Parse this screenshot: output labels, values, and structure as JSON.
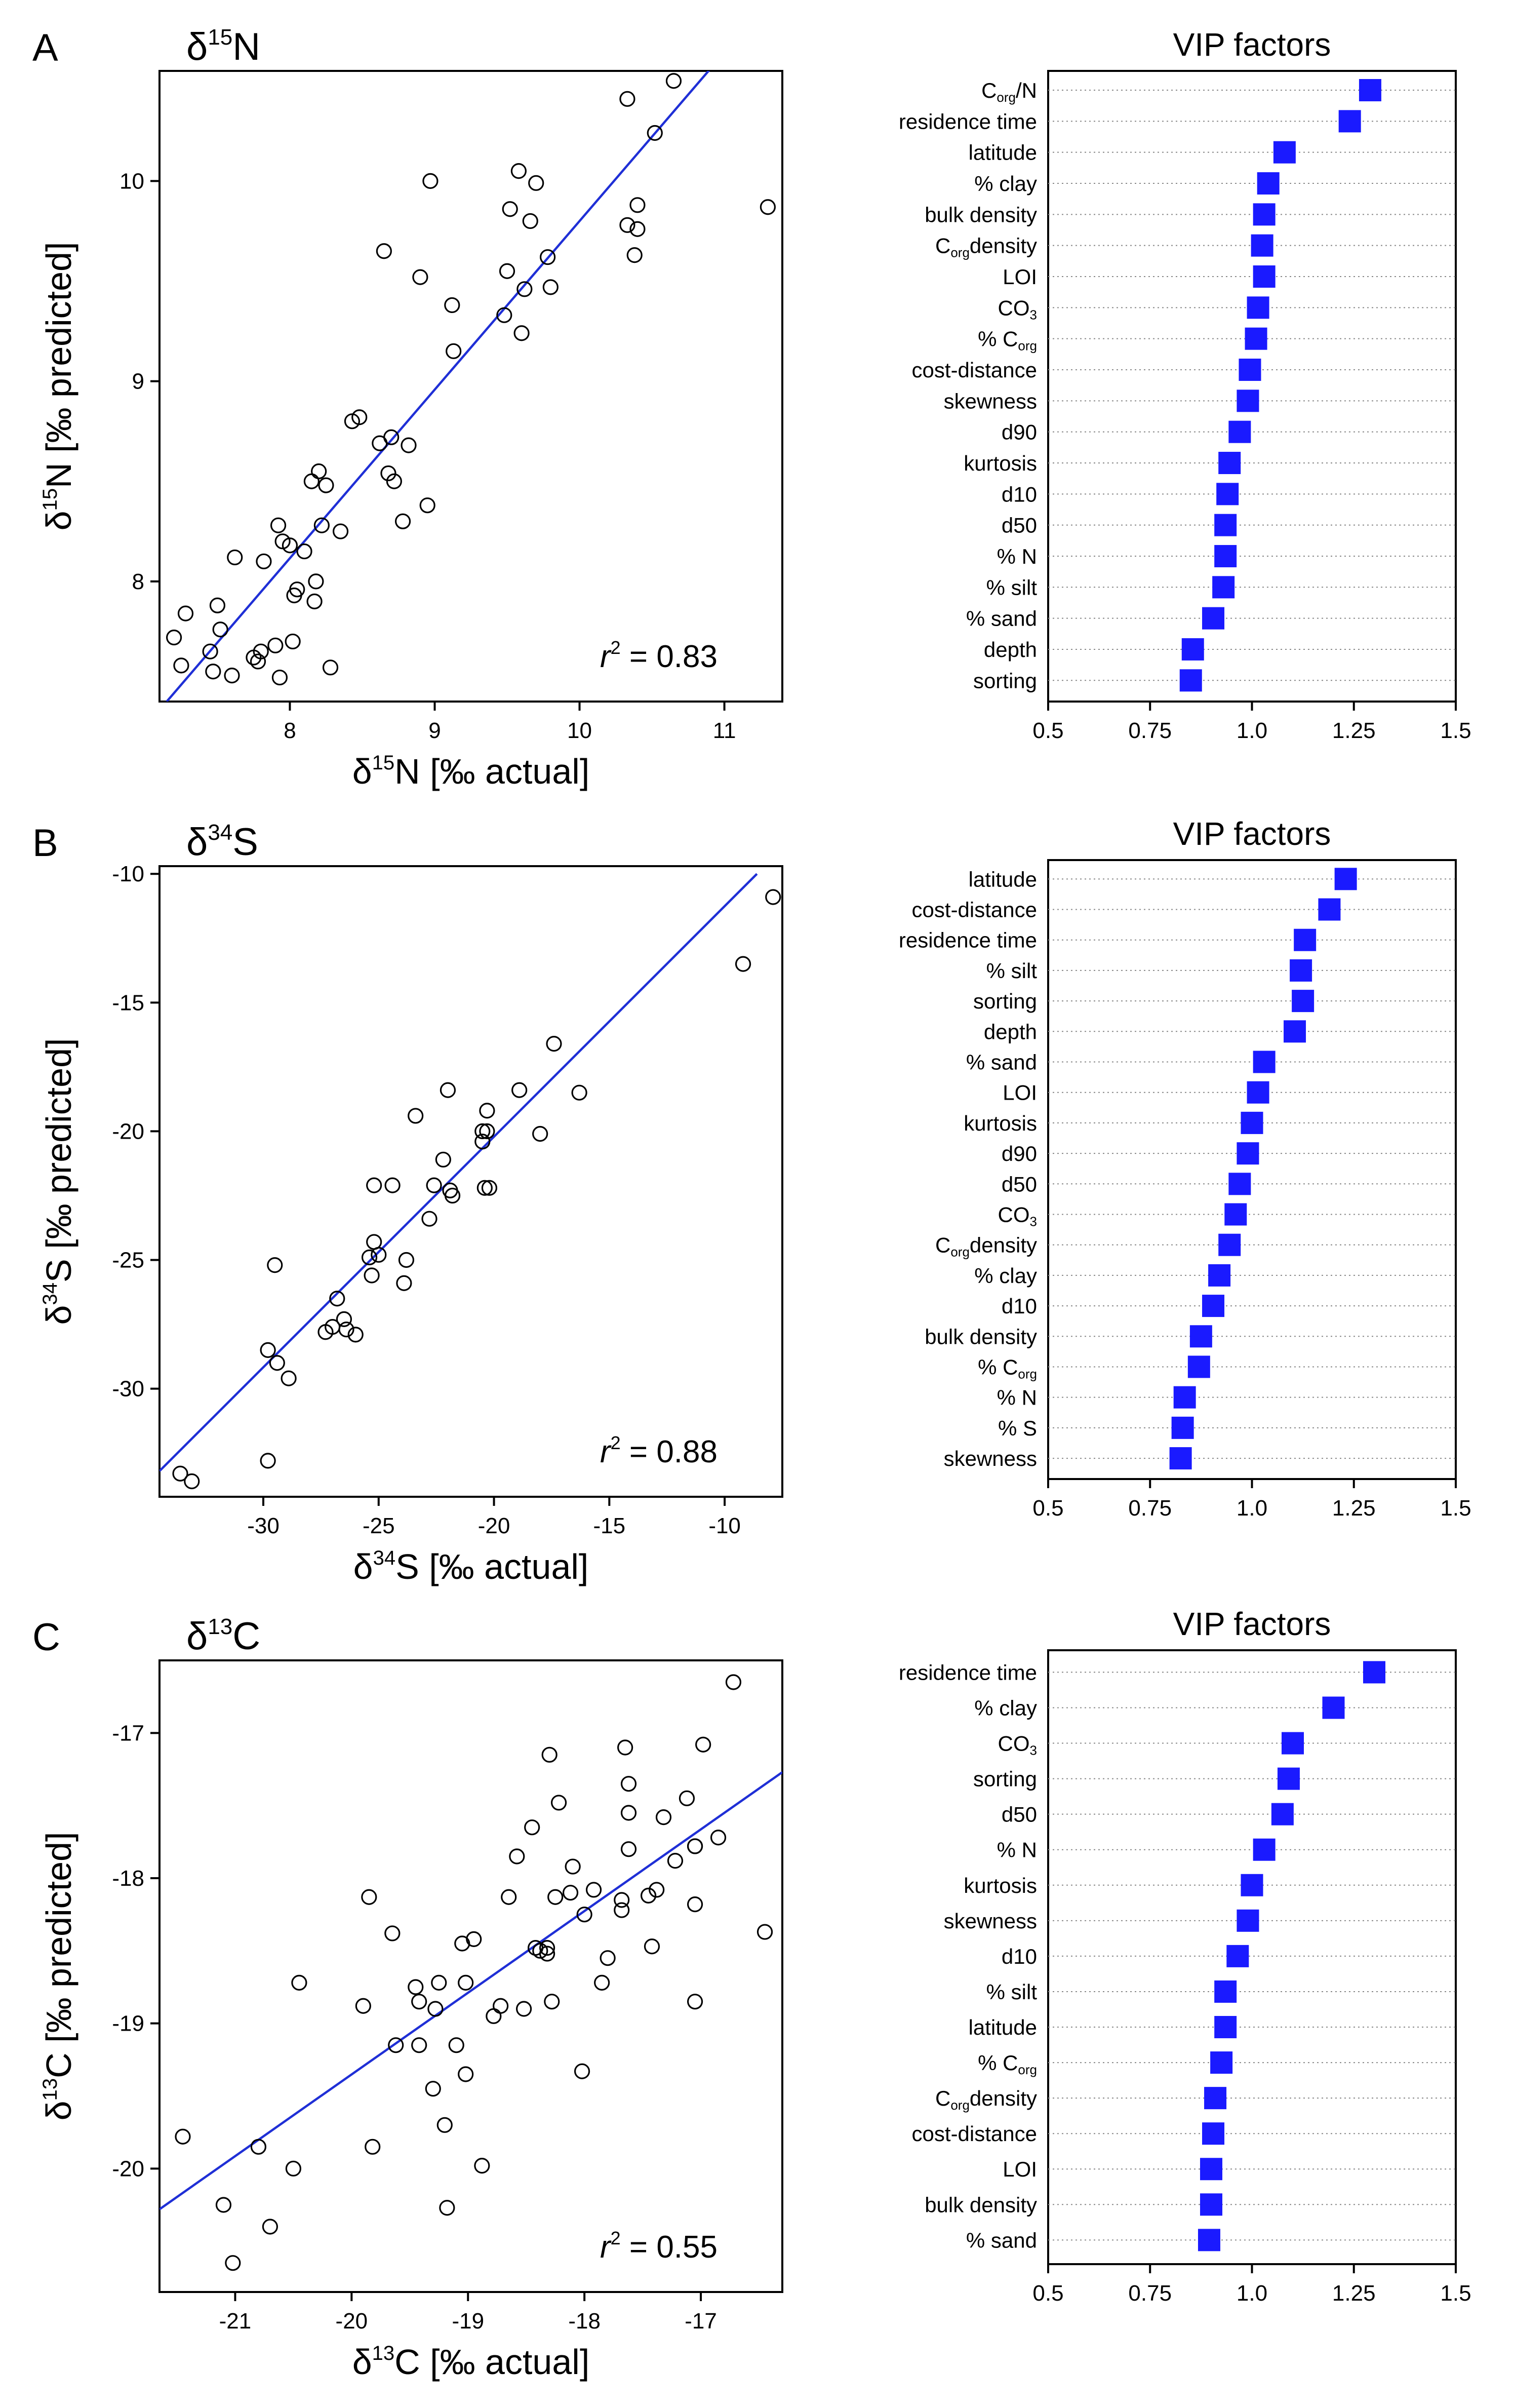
{
  "colors": {
    "regression": "#1f2fd6",
    "vip": "#1a1aff",
    "axis": "#000000",
    "guide": "#888888"
  },
  "chart_data": [
    {
      "panel": "A",
      "type": "scatter",
      "title": {
        "main": "δ",
        "sup": "15",
        "rest": "N"
      },
      "xlabel": {
        "pre": "δ",
        "sup": "15",
        "post": "N [‰ actual]"
      },
      "ylabel": {
        "pre": "δ",
        "sup": "15",
        "post": "N [‰ predicted]"
      },
      "xlim": [
        7.1,
        11.4
      ],
      "ylim": [
        7.4,
        10.55
      ],
      "xticks": [
        8,
        9,
        10,
        11
      ],
      "yticks": [
        8,
        9,
        10
      ],
      "xtick_labels": [
        "8",
        "9",
        "10",
        "11"
      ],
      "ytick_labels": [
        "8",
        "9",
        "10"
      ],
      "fit": {
        "x0": 7.15,
        "y0": 7.4,
        "x1": 10.95,
        "y1": 10.6
      },
      "r2": {
        "label": "r",
        "sup": "2",
        "value": "= 0.83"
      },
      "points": [
        [
          7.2,
          7.72
        ],
        [
          7.25,
          7.58
        ],
        [
          7.28,
          7.84
        ],
        [
          7.45,
          7.65
        ],
        [
          7.47,
          7.55
        ],
        [
          7.5,
          7.88
        ],
        [
          7.52,
          7.76
        ],
        [
          7.6,
          7.53
        ],
        [
          7.62,
          8.12
        ],
        [
          7.75,
          7.62
        ],
        [
          7.78,
          7.6
        ],
        [
          7.8,
          7.65
        ],
        [
          7.82,
          8.1
        ],
        [
          7.9,
          7.68
        ],
        [
          7.92,
          8.28
        ],
        [
          7.95,
          8.2
        ],
        [
          7.93,
          7.52
        ],
        [
          8.0,
          8.18
        ],
        [
          8.02,
          7.7
        ],
        [
          8.03,
          7.93
        ],
        [
          8.05,
          7.96
        ],
        [
          8.1,
          8.15
        ],
        [
          8.15,
          8.5
        ],
        [
          8.17,
          7.9
        ],
        [
          8.18,
          8.0
        ],
        [
          8.2,
          8.55
        ],
        [
          8.22,
          8.28
        ],
        [
          8.25,
          8.48
        ],
        [
          8.28,
          7.57
        ],
        [
          8.35,
          8.25
        ],
        [
          8.43,
          8.8
        ],
        [
          8.48,
          8.82
        ],
        [
          8.62,
          8.69
        ],
        [
          8.65,
          9.65
        ],
        [
          8.68,
          8.54
        ],
        [
          8.7,
          8.72
        ],
        [
          8.72,
          8.5
        ],
        [
          8.78,
          8.3
        ],
        [
          8.82,
          8.68
        ],
        [
          8.9,
          9.52
        ],
        [
          8.95,
          8.38
        ],
        [
          8.97,
          10.0
        ],
        [
          9.12,
          9.38
        ],
        [
          9.13,
          9.15
        ],
        [
          9.48,
          9.33
        ],
        [
          9.5,
          9.55
        ],
        [
          9.52,
          9.86
        ],
        [
          9.58,
          10.05
        ],
        [
          9.6,
          9.24
        ],
        [
          9.62,
          9.46
        ],
        [
          9.66,
          9.8
        ],
        [
          9.7,
          9.99
        ],
        [
          9.78,
          9.62
        ],
        [
          9.8,
          9.47
        ],
        [
          10.33,
          10.41
        ],
        [
          10.33,
          9.78
        ],
        [
          10.38,
          9.63
        ],
        [
          10.4,
          9.76
        ],
        [
          10.4,
          9.88
        ],
        [
          10.52,
          10.24
        ],
        [
          10.65,
          10.5
        ],
        [
          11.3,
          9.87
        ]
      ]
    },
    {
      "panel": "B",
      "type": "scatter",
      "title": {
        "main": "δ",
        "sup": "34",
        "rest": "S"
      },
      "xlabel": {
        "pre": "δ",
        "sup": "34",
        "post": "S [‰ actual]"
      },
      "ylabel": {
        "pre": "δ",
        "sup": "34",
        "post": "S [‰ predicted]"
      },
      "xlim": [
        -34.5,
        -7.5
      ],
      "ylim": [
        -34.2,
        -9.7
      ],
      "xticks": [
        -30,
        -25,
        -20,
        -15,
        -10
      ],
      "yticks": [
        -30,
        -25,
        -20,
        -15,
        -10
      ],
      "xtick_labels": [
        "-30",
        "-25",
        "-20",
        "-15",
        "-10"
      ],
      "ytick_labels": [
        "-30",
        "-25",
        "-20",
        "-15",
        "-10"
      ],
      "fit": {
        "x0": -34.5,
        "y0": -33.2,
        "x1": -8.6,
        "y1": -10.0
      },
      "r2": {
        "label": "r",
        "sup": "2",
        "value": "= 0.88"
      },
      "points": [
        [
          -33.6,
          -33.3
        ],
        [
          -33.1,
          -33.6
        ],
        [
          -29.8,
          -28.5
        ],
        [
          -29.8,
          -32.8
        ],
        [
          -29.5,
          -25.2
        ],
        [
          -29.4,
          -29.0
        ],
        [
          -28.9,
          -29.6
        ],
        [
          -27.3,
          -27.8
        ],
        [
          -27.0,
          -27.6
        ],
        [
          -26.8,
          -26.5
        ],
        [
          -26.5,
          -27.3
        ],
        [
          -26.4,
          -27.7
        ],
        [
          -26.0,
          -27.9
        ],
        [
          -25.4,
          -24.9
        ],
        [
          -25.3,
          -25.6
        ],
        [
          -25.2,
          -24.3
        ],
        [
          -25.2,
          -22.1
        ],
        [
          -25.0,
          -24.8
        ],
        [
          -24.4,
          -22.1
        ],
        [
          -23.9,
          -25.9
        ],
        [
          -23.8,
          -25.0
        ],
        [
          -23.4,
          -19.4
        ],
        [
          -22.8,
          -23.4
        ],
        [
          -22.6,
          -22.1
        ],
        [
          -22.2,
          -21.1
        ],
        [
          -22.0,
          -18.4
        ],
        [
          -21.9,
          -22.3
        ],
        [
          -21.8,
          -22.5
        ],
        [
          -20.5,
          -20.0
        ],
        [
          -20.5,
          -20.4
        ],
        [
          -20.4,
          -22.2
        ],
        [
          -20.3,
          -19.2
        ],
        [
          -20.3,
          -20.0
        ],
        [
          -20.2,
          -22.2
        ],
        [
          -18.9,
          -18.4
        ],
        [
          -18.0,
          -20.1
        ],
        [
          -17.4,
          -16.6
        ],
        [
          -16.3,
          -18.5
        ],
        [
          -9.2,
          -13.5
        ],
        [
          -7.9,
          -10.9
        ]
      ]
    },
    {
      "panel": "C",
      "type": "scatter",
      "title": {
        "main": "δ",
        "sup": "13",
        "rest": "C"
      },
      "xlabel": {
        "pre": "δ",
        "sup": "13",
        "post": "C [‰ actual]"
      },
      "ylabel": {
        "pre": "δ",
        "sup": "13",
        "post": "C [‰ predicted]"
      },
      "xlim": [
        -21.65,
        -16.3
      ],
      "ylim": [
        -20.85,
        -16.5
      ],
      "xticks": [
        -21,
        -20,
        -19,
        -18,
        -17
      ],
      "yticks": [
        -20,
        -19,
        -18,
        -17
      ],
      "xtick_labels": [
        "-21",
        "-20",
        "-19",
        "-18",
        "-17"
      ],
      "ytick_labels": [
        "-20",
        "-19",
        "-18",
        "-17"
      ],
      "fit": {
        "x0": -21.65,
        "y0": -20.28,
        "x1": -16.3,
        "y1": -17.27
      },
      "r2": {
        "label": "r",
        "sup": "2",
        "value": "= 0.55"
      },
      "points": [
        [
          -21.45,
          -19.78
        ],
        [
          -21.1,
          -20.25
        ],
        [
          -21.02,
          -20.65
        ],
        [
          -20.8,
          -19.85
        ],
        [
          -20.7,
          -20.4
        ],
        [
          -20.5,
          -20.0
        ],
        [
          -20.45,
          -18.72
        ],
        [
          -19.9,
          -18.88
        ],
        [
          -19.85,
          -18.13
        ],
        [
          -19.82,
          -19.85
        ],
        [
          -19.65,
          -18.38
        ],
        [
          -19.62,
          -19.15
        ],
        [
          -19.45,
          -18.75
        ],
        [
          -19.42,
          -18.85
        ],
        [
          -19.42,
          -19.15
        ],
        [
          -19.3,
          -19.45
        ],
        [
          -19.28,
          -18.9
        ],
        [
          -19.25,
          -18.72
        ],
        [
          -19.2,
          -19.7
        ],
        [
          -19.18,
          -20.27
        ],
        [
          -19.1,
          -19.15
        ],
        [
          -19.05,
          -18.45
        ],
        [
          -19.02,
          -18.72
        ],
        [
          -19.02,
          -19.35
        ],
        [
          -18.95,
          -18.42
        ],
        [
          -18.88,
          -19.98
        ],
        [
          -18.78,
          -18.95
        ],
        [
          -18.72,
          -18.88
        ],
        [
          -18.65,
          -18.13
        ],
        [
          -18.58,
          -17.85
        ],
        [
          -18.52,
          -18.9
        ],
        [
          -18.45,
          -17.65
        ],
        [
          -18.42,
          -18.48
        ],
        [
          -18.38,
          -18.5
        ],
        [
          -18.32,
          -18.52
        ],
        [
          -18.32,
          -18.48
        ],
        [
          -18.3,
          -17.15
        ],
        [
          -18.28,
          -18.85
        ],
        [
          -18.25,
          -18.13
        ],
        [
          -18.22,
          -17.48
        ],
        [
          -18.12,
          -18.1
        ],
        [
          -18.1,
          -17.92
        ],
        [
          -18.02,
          -19.33
        ],
        [
          -18.0,
          -18.25
        ],
        [
          -17.92,
          -18.08
        ],
        [
          -17.85,
          -18.72
        ],
        [
          -17.8,
          -18.55
        ],
        [
          -17.68,
          -18.15
        ],
        [
          -17.68,
          -18.22
        ],
        [
          -17.65,
          -17.1
        ],
        [
          -17.62,
          -17.35
        ],
        [
          -17.62,
          -17.55
        ],
        [
          -17.62,
          -17.8
        ],
        [
          -17.45,
          -18.12
        ],
        [
          -17.42,
          -18.47
        ],
        [
          -17.38,
          -18.08
        ],
        [
          -17.32,
          -17.58
        ],
        [
          -17.22,
          -17.88
        ],
        [
          -17.12,
          -17.45
        ],
        [
          -17.05,
          -17.78
        ],
        [
          -17.05,
          -17.78
        ],
        [
          -17.05,
          -18.18
        ],
        [
          -17.05,
          -18.85
        ],
        [
          -16.98,
          -17.08
        ],
        [
          -16.85,
          -17.72
        ],
        [
          -16.72,
          -16.65
        ],
        [
          -16.45,
          -18.37
        ]
      ]
    }
  ],
  "vip_panels": [
    {
      "panel": "A",
      "title": "VIP factors",
      "xlim": [
        0.5,
        1.5
      ],
      "xticks": [
        0.5,
        0.75,
        1.0,
        1.25,
        1.5
      ],
      "xtick_labels": [
        "0.5",
        "0.75",
        "1.0",
        "1.25",
        "1.5"
      ],
      "items": [
        {
          "pre": "C",
          "sub": "org",
          "post": "/N",
          "value": 1.29
        },
        {
          "pre": "residence time",
          "value": 1.24
        },
        {
          "pre": "latitude",
          "value": 1.08
        },
        {
          "pre": "% clay",
          "value": 1.04
        },
        {
          "pre": "bulk density",
          "value": 1.03
        },
        {
          "pre": "C",
          "sub": "org",
          "post": "density",
          "value": 1.025
        },
        {
          "pre": "LOI",
          "value": 1.03
        },
        {
          "pre": "CO",
          "sub": "3",
          "value": 1.015
        },
        {
          "pre": "% C",
          "sub": "org",
          "value": 1.01
        },
        {
          "pre": "cost-distance",
          "value": 0.995
        },
        {
          "pre": "skewness",
          "value": 0.99
        },
        {
          "pre": "d90",
          "value": 0.97
        },
        {
          "pre": "kurtosis",
          "value": 0.945
        },
        {
          "pre": "d10",
          "value": 0.94
        },
        {
          "pre": "d50",
          "value": 0.935
        },
        {
          "pre": "% N",
          "value": 0.935
        },
        {
          "pre": "% silt",
          "value": 0.93
        },
        {
          "pre": "% sand",
          "value": 0.905
        },
        {
          "pre": "depth",
          "value": 0.855
        },
        {
          "pre": "sorting",
          "value": 0.85
        }
      ]
    },
    {
      "panel": "B",
      "title": "VIP factors",
      "xlim": [
        0.5,
        1.5
      ],
      "xticks": [
        0.5,
        0.75,
        1.0,
        1.25,
        1.5
      ],
      "xtick_labels": [
        "0.5",
        "0.75",
        "1.0",
        "1.25",
        "1.5"
      ],
      "items": [
        {
          "pre": "latitude",
          "value": 1.23
        },
        {
          "pre": "cost-distance",
          "value": 1.19
        },
        {
          "pre": "residence time",
          "value": 1.13
        },
        {
          "pre": "% silt",
          "value": 1.12
        },
        {
          "pre": "sorting",
          "value": 1.125
        },
        {
          "pre": "depth",
          "value": 1.105
        },
        {
          "pre": "% sand",
          "value": 1.03
        },
        {
          "pre": "LOI",
          "value": 1.015
        },
        {
          "pre": "kurtosis",
          "value": 1.0
        },
        {
          "pre": "d90",
          "value": 0.99
        },
        {
          "pre": "d50",
          "value": 0.97
        },
        {
          "pre": "CO",
          "sub": "3",
          "value": 0.96
        },
        {
          "pre": "C",
          "sub": "org",
          "post": "density",
          "value": 0.945
        },
        {
          "pre": "% clay",
          "value": 0.92
        },
        {
          "pre": "d10",
          "value": 0.905
        },
        {
          "pre": "bulk density",
          "value": 0.875
        },
        {
          "pre": "% C",
          "sub": "org",
          "value": 0.87
        },
        {
          "pre": "% N",
          "value": 0.835
        },
        {
          "pre": "% S",
          "value": 0.83
        },
        {
          "pre": "skewness",
          "value": 0.825
        }
      ]
    },
    {
      "panel": "C",
      "title": "VIP factors",
      "xlim": [
        0.5,
        1.5
      ],
      "xticks": [
        0.5,
        0.75,
        1.0,
        1.25,
        1.5
      ],
      "xtick_labels": [
        "0.5",
        "0.75",
        "1.0",
        "1.25",
        "1.5"
      ],
      "items": [
        {
          "pre": "residence time",
          "value": 1.3
        },
        {
          "pre": "% clay",
          "value": 1.2
        },
        {
          "pre": "CO",
          "sub": "3",
          "value": 1.1
        },
        {
          "pre": "sorting",
          "value": 1.09
        },
        {
          "pre": "d50",
          "value": 1.075
        },
        {
          "pre": "% N",
          "value": 1.03
        },
        {
          "pre": "kurtosis",
          "value": 1.0
        },
        {
          "pre": "skewness",
          "value": 0.99
        },
        {
          "pre": "d10",
          "value": 0.965
        },
        {
          "pre": "% silt",
          "value": 0.935
        },
        {
          "pre": "latitude",
          "value": 0.935
        },
        {
          "pre": "% C",
          "sub": "org",
          "value": 0.925
        },
        {
          "pre": "C",
          "sub": "org",
          "post": "density",
          "value": 0.91
        },
        {
          "pre": "cost-distance",
          "value": 0.905
        },
        {
          "pre": "LOI",
          "value": 0.9
        },
        {
          "pre": "bulk density",
          "value": 0.9
        },
        {
          "pre": "% sand",
          "value": 0.895
        }
      ]
    }
  ]
}
